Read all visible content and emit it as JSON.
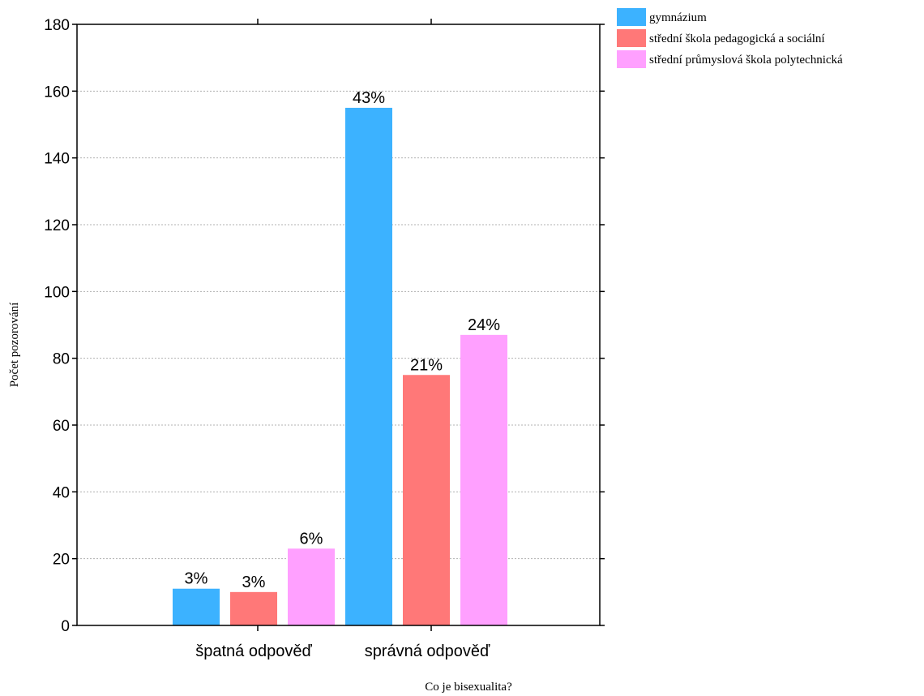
{
  "chart_data": {
    "type": "bar",
    "title": "",
    "xlabel": "Co je bisexualita?",
    "ylabel": "Počet pozorování",
    "categories": [
      "špatná odpověď",
      "správná odpověď"
    ],
    "ylim": [
      0,
      180
    ],
    "yticks": [
      0,
      20,
      40,
      60,
      80,
      100,
      120,
      140,
      160,
      180
    ],
    "grid": "horizontal dotted",
    "legend_position": "top-right",
    "series": [
      {
        "name": "gymnázium",
        "color": "#3cb2ff",
        "values": [
          11,
          155
        ],
        "labels": [
          "3%",
          "43%"
        ]
      },
      {
        "name": "střední škola pedagogická a sociální",
        "color": "#ff7878",
        "values": [
          10,
          75
        ],
        "labels": [
          "3%",
          "21%"
        ]
      },
      {
        "name": "střední průmyslová škola polytechnická",
        "color": "#ffa0ff",
        "values": [
          23,
          87
        ],
        "labels": [
          "6%",
          "24%"
        ]
      }
    ]
  }
}
